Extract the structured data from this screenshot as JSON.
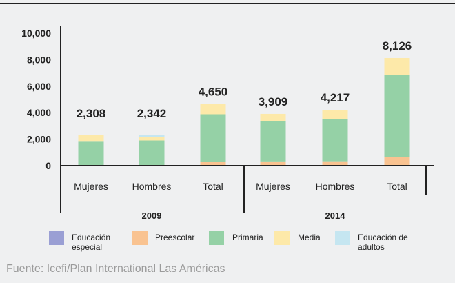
{
  "chart_data": {
    "type": "bar",
    "stacked": true,
    "groups": [
      {
        "label": "2009",
        "categories": [
          "Mujeres",
          "Hombres",
          "Total"
        ]
      },
      {
        "label": "2014",
        "categories": [
          "Mujeres",
          "Hombres",
          "Total"
        ]
      }
    ],
    "x": [
      "Mujeres",
      "Hombres",
      "Total",
      "Mujeres",
      "Hombres",
      "Total"
    ],
    "totals": [
      "2,308",
      "2,342",
      "4,650",
      "3,909",
      "4,217",
      "8,126"
    ],
    "series": [
      {
        "name": "Educación especial",
        "color": "#9a9fd4",
        "values": [
          0,
          0,
          0,
          0,
          0,
          0
        ]
      },
      {
        "name": "Preescolar",
        "color": "#f9c391",
        "values": [
          20,
          20,
          300,
          320,
          330,
          650
        ]
      },
      {
        "name": "Primaria",
        "color": "#95d1a6",
        "values": [
          1840,
          1880,
          3580,
          3060,
          3200,
          6220
        ]
      },
      {
        "name": "Media",
        "color": "#fde9a9",
        "values": [
          448,
          240,
          770,
          529,
          687,
          1256
        ]
      },
      {
        "name": "Educación de adultos",
        "color": "#c5e6f1",
        "values": [
          0,
          202,
          0,
          0,
          0,
          0
        ]
      }
    ],
    "yticks": [
      "0",
      "2,000",
      "4,000",
      "6,000",
      "8,000",
      "10,000"
    ],
    "ylim": [
      0,
      10000
    ],
    "grid": false,
    "legend_position": "bottom"
  },
  "legend": {
    "items": [
      {
        "line1": "Educación",
        "line2": "especial"
      },
      {
        "line1": "Preescolar",
        "line2": ""
      },
      {
        "line1": "Primaria",
        "line2": ""
      },
      {
        "line1": "Media",
        "line2": ""
      },
      {
        "line1": "Educación de",
        "line2": "adultos"
      }
    ]
  },
  "source": "Fuente: Icefi/Plan International Las Américas"
}
